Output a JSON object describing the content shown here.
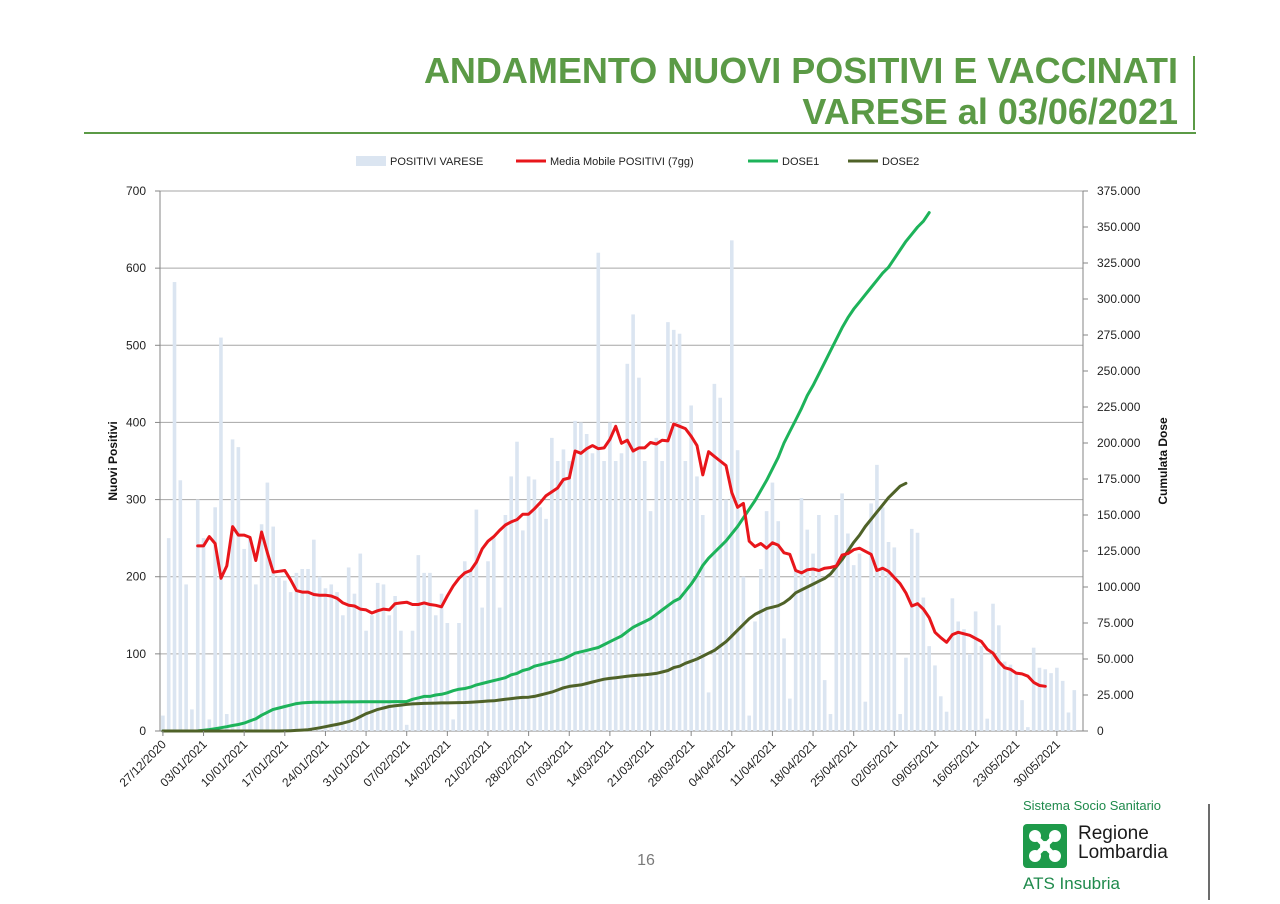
{
  "header": {
    "title_line1": "ANDAMENTO NUOVI POSITIVI E VACCINATI",
    "title_line2": "VARESE al 03/06/2021"
  },
  "footer": {
    "page_number": "16"
  },
  "logo": {
    "org_line": "Sistema Socio Sanitario",
    "name_line1": "Regione",
    "name_line2": "Lombardia",
    "ats_line": "ATS Insubria"
  },
  "colors": {
    "title_green": "#5b9a46",
    "bars": "#dbe5f1",
    "moving_average": "#e8161b",
    "dose1": "#1db35a",
    "dose2": "#4f6228",
    "logo_green": "#1e9a4a"
  },
  "chart_data": {
    "type": "bar",
    "legend_position": "top",
    "grid": true,
    "ylabel": "Nuovi Positivi",
    "y2label": "Cumulata Dose",
    "ylim": [
      0,
      700
    ],
    "y2lim": [
      0,
      375000
    ],
    "y_ticks": [
      "0",
      "100",
      "200",
      "300",
      "400",
      "500",
      "600",
      "700"
    ],
    "y2_ticks": [
      "0",
      "25.000",
      "50.000",
      "75.000",
      "100.000",
      "125.000",
      "150.000",
      "175.000",
      "200.000",
      "225.000",
      "250.000",
      "275.000",
      "300.000",
      "325.000",
      "350.000",
      "375.000"
    ],
    "x_range": [
      "2020-12-27",
      "2021-06-03"
    ],
    "x_tick_labels": [
      "27/12/2020",
      "03/01/2021",
      "10/01/2021",
      "17/01/2021",
      "24/01/2021",
      "31/01/2021",
      "07/02/2021",
      "14/02/2021",
      "21/02/2021",
      "28/02/2021",
      "07/03/2021",
      "14/03/2021",
      "21/03/2021",
      "28/03/2021",
      "04/04/2021",
      "11/04/2021",
      "18/04/2021",
      "25/04/2021",
      "02/05/2021",
      "09/05/2021",
      "16/05/2021",
      "23/05/2021",
      "30/05/2021"
    ],
    "series": [
      {
        "name": "POSITIVI VARESE",
        "type": "bar",
        "axis": "left",
        "start": "2020-12-27",
        "values": [
          20,
          250,
          582,
          325,
          190,
          28,
          300,
          250,
          15,
          290,
          510,
          22,
          378,
          368,
          236,
          250,
          190,
          268,
          322,
          265,
          200,
          195,
          180,
          205,
          210,
          210,
          248,
          200,
          185,
          190,
          180,
          150,
          212,
          178,
          230,
          130,
          150,
          192,
          190,
          150,
          175,
          130,
          8,
          130,
          228,
          205,
          205,
          150,
          178,
          140,
          15,
          140,
          220,
          210,
          287,
          160,
          220,
          250,
          160,
          280,
          330,
          375,
          260,
          330,
          326,
          290,
          275,
          380,
          350,
          365,
          350,
          402,
          400,
          385,
          360,
          620,
          350,
          400,
          350,
          360,
          476,
          540,
          458,
          350,
          285,
          380,
          350,
          530,
          520,
          515,
          350,
          422,
          330,
          280,
          50,
          450,
          432,
          300,
          636,
          364,
          200,
          20,
          142,
          210,
          285,
          322,
          272,
          120,
          42,
          210,
          302,
          261,
          230,
          280,
          66,
          22,
          280,
          308,
          256,
          215,
          230,
          38,
          295,
          345,
          290,
          245,
          238,
          22,
          95,
          262,
          257,
          173,
          110,
          85,
          45,
          25,
          172,
          142,
          132,
          100,
          155,
          110,
          16,
          165,
          137,
          90,
          86,
          74,
          40,
          5,
          108,
          82,
          80,
          75,
          82,
          65,
          24,
          53
        ]
      },
      {
        "name": "Media Mobile POSITIVI (7gg)",
        "type": "line",
        "axis": "left",
        "start": "2021-01-02",
        "values": [
          240,
          240,
          252,
          243,
          198,
          214,
          265,
          254,
          254,
          251,
          221,
          258,
          231,
          206,
          207,
          208,
          196,
          182,
          180,
          180,
          177,
          176,
          176,
          175,
          172,
          166,
          163,
          162,
          158,
          157,
          153,
          156,
          158,
          157,
          165,
          166,
          167,
          164,
          164,
          166,
          164,
          163,
          161,
          175,
          188,
          198,
          205,
          208,
          219,
          236,
          246,
          252,
          260,
          267,
          271,
          274,
          281,
          281,
          288,
          296,
          305,
          310,
          315,
          326,
          328,
          363,
          360,
          366,
          370,
          366,
          367,
          378,
          395,
          373,
          377,
          363,
          367,
          367,
          374,
          372,
          377,
          376,
          398,
          395,
          392,
          382,
          370,
          332,
          362,
          356,
          350,
          344,
          309,
          290,
          295,
          246,
          239,
          243,
          237,
          244,
          241,
          231,
          229,
          208,
          205,
          209,
          210,
          208,
          211,
          212,
          214,
          228,
          230,
          235,
          237,
          233,
          229,
          208,
          211,
          207,
          199,
          191,
          179,
          162,
          165,
          158,
          147,
          128,
          121,
          115,
          125,
          128,
          126,
          124,
          120,
          116,
          106,
          101,
          90,
          82,
          80,
          75,
          74,
          71,
          63,
          59,
          58
        ]
      },
      {
        "name": "DOSE1",
        "type": "line",
        "axis": "right",
        "start": "2020-12-27",
        "values": [
          0,
          0,
          0,
          0,
          0,
          0,
          100,
          500,
          1000,
          1600,
          2300,
          3000,
          3800,
          4500,
          5500,
          7000,
          8500,
          11000,
          13000,
          15000,
          16000,
          17000,
          18000,
          19000,
          19500,
          19800,
          20000,
          20000,
          20000,
          20100,
          20100,
          20200,
          20200,
          20200,
          20300,
          20300,
          20300,
          20300,
          20300,
          20300,
          20400,
          20400,
          20500,
          22000,
          23000,
          24000,
          24000,
          25000,
          25500,
          26500,
          28000,
          29000,
          29500,
          30500,
          32000,
          33000,
          34000,
          35000,
          36000,
          37000,
          39000,
          40000,
          42000,
          43000,
          45000,
          46000,
          47000,
          48000,
          49000,
          50000,
          52000,
          54000,
          55000,
          56000,
          57000,
          58000,
          60000,
          62000,
          64000,
          66000,
          69000,
          72000,
          74000,
          76000,
          78000,
          81000,
          84000,
          87000,
          90000,
          92000,
          97000,
          102000,
          108000,
          115000,
          120000,
          124000,
          128000,
          132000,
          137000,
          142000,
          148000,
          154000,
          160000,
          167000,
          174000,
          182000,
          190000,
          200000,
          208000,
          216000,
          224000,
          233000,
          240000,
          248000,
          256000,
          264000,
          272000,
          280000,
          287000,
          293000,
          298000,
          303000,
          308000,
          313000,
          318000,
          322000,
          328000,
          334000,
          340000,
          345000,
          350000,
          354000,
          360000
        ]
      },
      {
        "name": "DOSE2",
        "type": "line",
        "axis": "right",
        "start": "2020-12-27",
        "values": [
          0,
          0,
          0,
          0,
          0,
          0,
          0,
          0,
          0,
          0,
          0,
          0,
          0,
          0,
          0,
          0,
          0,
          0,
          0,
          0,
          0,
          100,
          200,
          400,
          600,
          900,
          1500,
          2200,
          3000,
          3800,
          4600,
          5500,
          6500,
          8000,
          10000,
          12000,
          13500,
          15000,
          16000,
          17000,
          17500,
          18000,
          18500,
          18800,
          19000,
          19200,
          19300,
          19400,
          19500,
          19500,
          19600,
          19700,
          19800,
          20000,
          20200,
          20500,
          20800,
          21000,
          21500,
          22000,
          22500,
          23000,
          23300,
          23500,
          24000,
          25000,
          26000,
          27000,
          28500,
          30000,
          31000,
          31500,
          32000,
          33000,
          34000,
          35000,
          36000,
          36500,
          37000,
          37500,
          38000,
          38500,
          38800,
          39000,
          39500,
          40000,
          41000,
          42000,
          44000,
          45000,
          47000,
          48500,
          50000,
          52000,
          54000,
          56000,
          59000,
          62000,
          66000,
          70000,
          74000,
          78000,
          81000,
          83000,
          85000,
          86000,
          87000,
          89000,
          92000,
          96000,
          98000,
          100000,
          102000,
          104000,
          106000,
          109000,
          114000,
          119000,
          125000,
          131000,
          136000,
          142000,
          147000,
          152000,
          157000,
          162000,
          166000,
          170000,
          172000
        ]
      }
    ]
  }
}
